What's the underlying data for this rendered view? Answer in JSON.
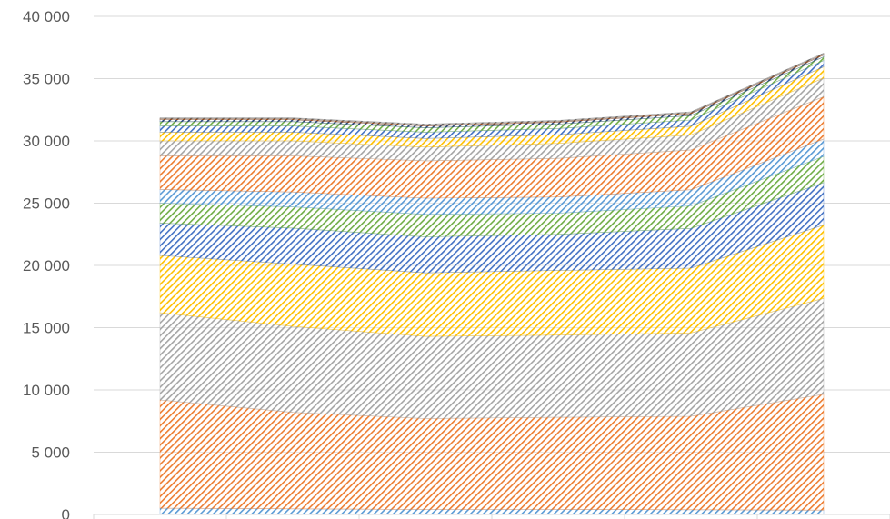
{
  "chart_data": {
    "type": "area",
    "stacked": true,
    "pattern": "diagonal-hatch",
    "title": "",
    "xlabel": "",
    "ylabel": "",
    "ylim": [
      0,
      40000
    ],
    "y_ticks": [
      0,
      5000,
      10000,
      15000,
      20000,
      25000,
      30000,
      35000,
      40000
    ],
    "y_tick_labels": [
      "0",
      "5 000",
      "10 000",
      "15 000",
      "20 000",
      "25 000",
      "30 000",
      "35 000",
      "40 000"
    ],
    "x_category_count": 6,
    "grid": {
      "horizontal": true
    },
    "legend": "none",
    "x": [
      0,
      1,
      2,
      3,
      4,
      5
    ],
    "series": [
      {
        "color": "#5b9bd5",
        "values": [
          500,
          450,
          400,
          400,
          380,
          350
        ]
      },
      {
        "color": "#ed7d31",
        "values": [
          8700,
          7750,
          7300,
          7400,
          7500,
          9300
        ]
      },
      {
        "color": "#a5a5a5",
        "values": [
          7000,
          6900,
          6600,
          6600,
          6700,
          7700
        ]
      },
      {
        "color": "#ffc000",
        "values": [
          4600,
          5000,
          5100,
          5200,
          5200,
          5900
        ]
      },
      {
        "color": "#4472c4",
        "values": [
          2600,
          2900,
          2900,
          2900,
          3200,
          3400
        ]
      },
      {
        "color": "#70ad47",
        "values": [
          1600,
          1700,
          1800,
          1700,
          1800,
          2100
        ]
      },
      {
        "color": "#5b9bd5",
        "values": [
          1100,
          1200,
          1300,
          1300,
          1300,
          1400
        ]
      },
      {
        "color": "#ed7d31",
        "values": [
          2700,
          2900,
          3000,
          3100,
          3200,
          3400
        ]
      },
      {
        "color": "#a5a5a5",
        "values": [
          1200,
          1200,
          1100,
          1200,
          1200,
          1500
        ]
      },
      {
        "color": "#ffc000",
        "values": [
          700,
          700,
          700,
          700,
          700,
          900
        ]
      },
      {
        "color": "#4472c4",
        "values": [
          500,
          500,
          500,
          500,
          500,
          500
        ]
      },
      {
        "color": "#70ad47",
        "values": [
          350,
          350,
          350,
          350,
          350,
          300
        ]
      },
      {
        "color": "#264478",
        "values": [
          150,
          150,
          150,
          150,
          150,
          150
        ]
      },
      {
        "color": "#9e480e",
        "values": [
          80,
          80,
          80,
          80,
          80,
          80
        ]
      },
      {
        "color": "#636363",
        "values": [
          70,
          70,
          70,
          70,
          70,
          70
        ]
      }
    ]
  }
}
